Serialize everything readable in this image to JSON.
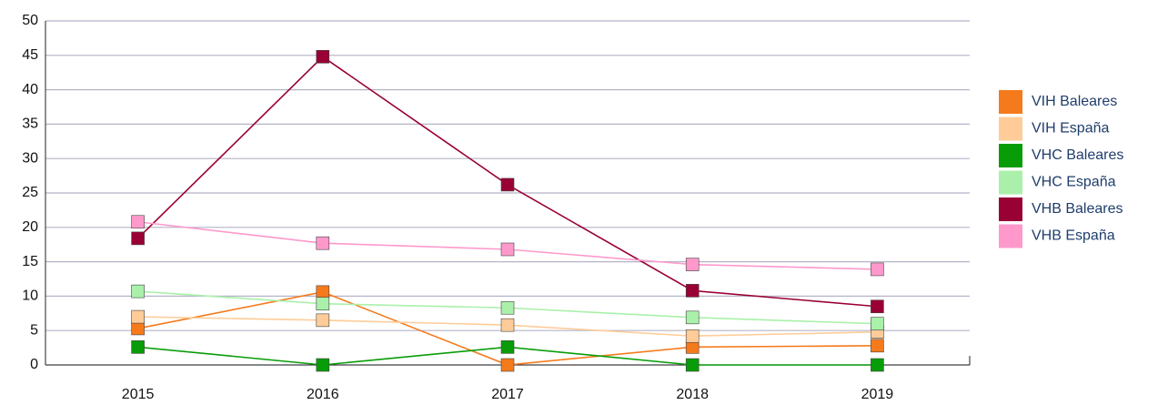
{
  "chart_data": {
    "type": "line",
    "categories": [
      "2015",
      "2016",
      "2017",
      "2018",
      "2019"
    ],
    "series": [
      {
        "name": "VIH Baleares",
        "color": "#f57a1c",
        "values": [
          5.3,
          10.6,
          0,
          2.6,
          2.8
        ]
      },
      {
        "name": "VIH España",
        "color": "#ffcc99",
        "values": [
          7.0,
          6.5,
          5.8,
          4.2,
          4.8
        ]
      },
      {
        "name": "VHC Baleares",
        "color": "#089c08",
        "values": [
          2.6,
          0,
          2.6,
          0,
          0
        ]
      },
      {
        "name": "VHC España",
        "color": "#aaf0aa",
        "values": [
          10.7,
          8.9,
          8.3,
          6.9,
          6.0
        ]
      },
      {
        "name": "VHB Baleares",
        "color": "#990033",
        "values": [
          18.4,
          44.8,
          26.2,
          10.8,
          8.5
        ]
      },
      {
        "name": "VHB España",
        "color": "#ff99cc",
        "values": [
          20.8,
          17.7,
          16.8,
          14.6,
          13.9
        ]
      }
    ],
    "ylim": [
      0,
      50
    ],
    "yticks": [
      0,
      5,
      10,
      15,
      20,
      25,
      30,
      35,
      40,
      45,
      50
    ],
    "grid": true,
    "legend": "right"
  }
}
